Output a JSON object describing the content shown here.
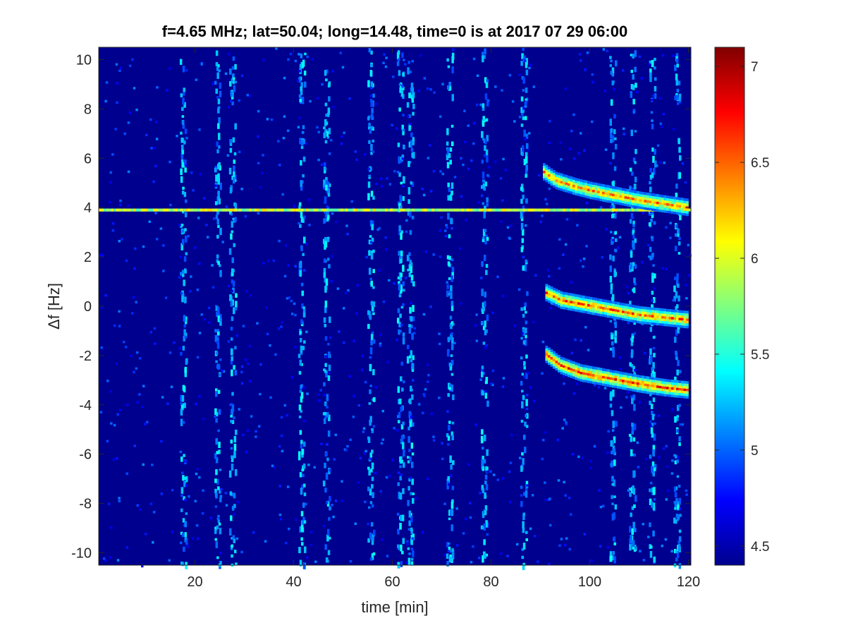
{
  "chart_data": {
    "type": "heatmap",
    "title": "f=4.65 MHz;  lat=50.04; long=14.48, time=0 is at 2017 07 29 06:00",
    "xlabel": "time [min]",
    "ylabel": "Δf [Hz]",
    "xlim": [
      0.5,
      120.5
    ],
    "ylim": [
      -10.5,
      10.5
    ],
    "x_ticks": [
      20,
      40,
      60,
      80,
      100,
      120
    ],
    "x_tick_labels": [
      "20",
      "40",
      "60",
      "80",
      "100",
      "120"
    ],
    "y_ticks": [
      -10,
      -8,
      -6,
      -4,
      -2,
      0,
      2,
      4,
      6,
      8,
      10
    ],
    "y_tick_labels": [
      "-10",
      "-8",
      "-6",
      "-4",
      "-2",
      "0",
      "2",
      "4",
      "6",
      "8",
      "10"
    ],
    "colormap": "jet",
    "clim": [
      4.4,
      7.1
    ],
    "colorbar_ticks": [
      4.5,
      5,
      5.5,
      6,
      6.5,
      7
    ],
    "colorbar_tick_labels": [
      "4.5",
      "5",
      "5.5",
      "6",
      "6.5",
      "7"
    ],
    "background_level": 4.45,
    "features": [
      {
        "kind": "carrier_line",
        "f": 3.9,
        "t_start": 0.5,
        "t_end": 120.5,
        "level": 5.9
      },
      {
        "kind": "doppler_trace",
        "points": [
          [
            90.5,
            5.5
          ],
          [
            93,
            5.15
          ],
          [
            97,
            4.9
          ],
          [
            100,
            4.75
          ],
          [
            105,
            4.55
          ],
          [
            110,
            4.35
          ],
          [
            115,
            4.2
          ],
          [
            120,
            4.05
          ]
        ],
        "level": 6.5
      },
      {
        "kind": "doppler_trace",
        "points": [
          [
            91,
            0.6
          ],
          [
            94,
            0.3
          ],
          [
            98,
            0.15
          ],
          [
            102,
            0.0
          ],
          [
            106,
            -0.15
          ],
          [
            110,
            -0.3
          ],
          [
            115,
            -0.4
          ],
          [
            120,
            -0.5
          ]
        ],
        "level": 6.6
      },
      {
        "kind": "doppler_trace",
        "points": [
          [
            91,
            -1.9
          ],
          [
            94,
            -2.35
          ],
          [
            98,
            -2.65
          ],
          [
            102,
            -2.8
          ],
          [
            106,
            -2.95
          ],
          [
            110,
            -3.1
          ],
          [
            115,
            -3.25
          ],
          [
            120,
            -3.35
          ]
        ],
        "level": 6.7
      }
    ],
    "vertical_noise_bands_min": [
      17.5,
      24.5,
      27.5,
      41.5,
      46.5,
      55.5,
      61.5,
      63.5,
      71.5,
      78.5,
      86.5,
      104.5,
      108.5,
      112.5,
      117.5
    ]
  }
}
